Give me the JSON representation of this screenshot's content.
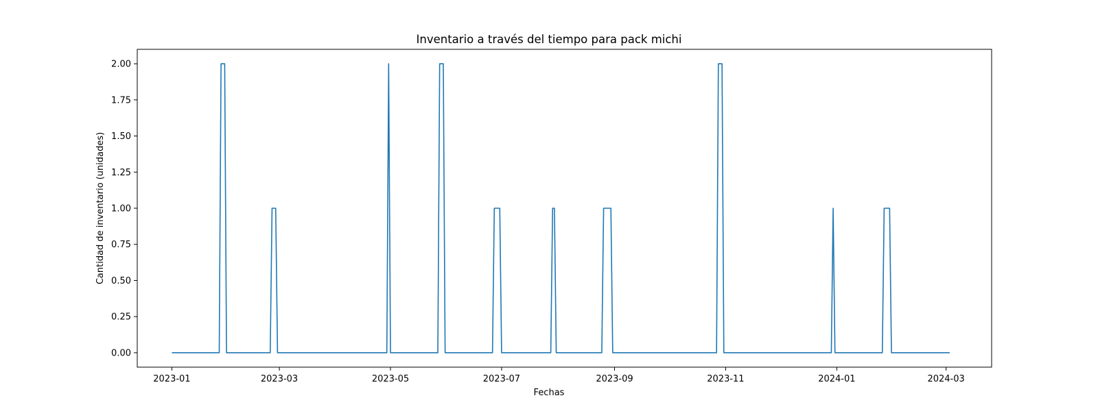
{
  "chart_data": {
    "type": "line",
    "title": "Inventario a través del tiempo para pack michi",
    "xlabel": "Fechas",
    "ylabel": "Cantidad de inventario (unidades)",
    "x_type": "date",
    "xlim": [
      "2022-12-13",
      "2024-03-26"
    ],
    "ylim": [
      -0.1,
      2.1
    ],
    "xticks": [
      "2023-01-01",
      "2023-03-01",
      "2023-05-01",
      "2023-07-01",
      "2023-09-01",
      "2023-11-01",
      "2024-01-01",
      "2024-03-01"
    ],
    "xtick_labels": [
      "2023-01",
      "2023-03",
      "2023-05",
      "2023-07",
      "2023-09",
      "2023-11",
      "2024-01",
      "2024-03"
    ],
    "yticks": [
      0,
      0.25,
      0.5,
      0.75,
      1.0,
      1.25,
      1.5,
      1.75,
      2.0
    ],
    "ytick_labels": [
      "0.00",
      "0.25",
      "0.50",
      "0.75",
      "1.00",
      "1.25",
      "1.50",
      "1.75",
      "2.00"
    ],
    "grid": false,
    "color": "#1f77b4",
    "series": [
      {
        "x": [
          "2023-01-01",
          "2023-01-27",
          "2023-01-28",
          "2023-01-30",
          "2023-01-31",
          "2023-02-24",
          "2023-02-25",
          "2023-02-27",
          "2023-02-28",
          "2023-04-29",
          "2023-04-30",
          "2023-05-01",
          "2023-05-27",
          "2023-05-28",
          "2023-05-30",
          "2023-05-31",
          "2023-06-26",
          "2023-06-27",
          "2023-06-30",
          "2023-07-01",
          "2023-07-28",
          "2023-07-29",
          "2023-07-30",
          "2023-07-31",
          "2023-08-25",
          "2023-08-26",
          "2023-08-30",
          "2023-08-31",
          "2023-10-27",
          "2023-10-28",
          "2023-10-30",
          "2023-10-31",
          "2023-12-29",
          "2023-12-30",
          "2023-12-31",
          "2024-01-26",
          "2024-01-27",
          "2024-01-30",
          "2024-01-31",
          "2024-03-03"
        ],
        "y": [
          0,
          0,
          2,
          2,
          0,
          0,
          1,
          1,
          0,
          0,
          2,
          0,
          0,
          2,
          2,
          0,
          0,
          1,
          1,
          0,
          0,
          1,
          1,
          0,
          0,
          1,
          1,
          0,
          0,
          2,
          2,
          0,
          0,
          1,
          0,
          0,
          1,
          1,
          0,
          0
        ]
      }
    ]
  }
}
